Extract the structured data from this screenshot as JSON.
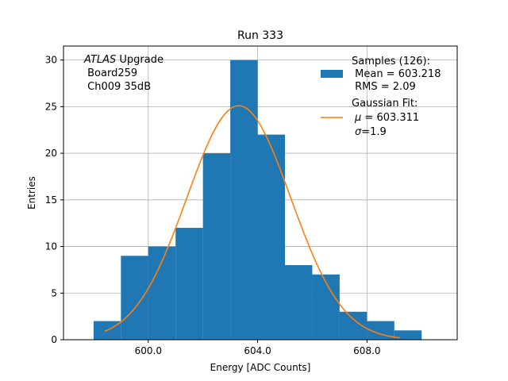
{
  "chart_data": {
    "type": "bar",
    "title": "Run 333",
    "xlabel": "Energy [ADC Counts]",
    "ylabel": "Entries",
    "xlim": [
      596.9,
      611.3
    ],
    "ylim": [
      0,
      31.5
    ],
    "grid": true,
    "x_ticks": [
      600,
      604,
      608
    ],
    "x_tick_labels": [
      "600.0",
      "604.0",
      "608.0"
    ],
    "y_ticks": [
      0,
      5,
      10,
      15,
      20,
      25,
      30
    ],
    "y_tick_labels": [
      "0",
      "5",
      "10",
      "15",
      "20",
      "25",
      "30"
    ],
    "histogram": {
      "name": "Samples",
      "color": "#1f77b4",
      "bin_edges": [
        598,
        599,
        600,
        601,
        602,
        603,
        604,
        605,
        606,
        607,
        608,
        609,
        610
      ],
      "counts": [
        2,
        9,
        10,
        12,
        20,
        30,
        22,
        8,
        7,
        3,
        2,
        1
      ]
    },
    "fit": {
      "name": "Gaussian Fit",
      "color": "#ff7f0e",
      "mu": 603.311,
      "sigma": 1.9,
      "amplitude": 25.1,
      "x_range": [
        598.4,
        609.2
      ]
    },
    "annotation": {
      "italic": "ATLAS",
      "line1_rest": " Upgrade",
      "line2": " Board259",
      "line3": " Ch009 35dB"
    },
    "legend": {
      "position": "top-right",
      "hist_line1": "Samples (126):",
      "hist_line2": " Mean = 603.218",
      "hist_line3": " RMS = 2.09",
      "fit_line1": "Gaussian Fit:",
      "fit_line2_symbol": "μ",
      "fit_line2_rest": " = 603.311",
      "fit_line3_symbol": "σ",
      "fit_line3_rest": "=1.9"
    }
  }
}
